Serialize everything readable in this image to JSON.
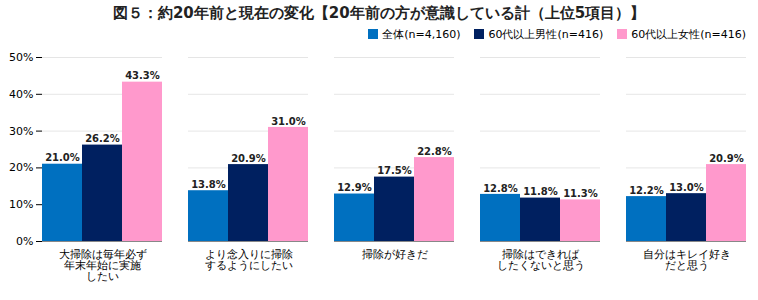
{
  "chart_data": {
    "type": "bar",
    "title": "図５：約20年前と現在の変化【20年前の方が意識している計（上位5項目）】",
    "categories": [
      "大掃除は毎年必ず\n年末年始に実施\nしたい",
      "より念入りに掃除\nするようにしたい",
      "掃除が好きだ",
      "掃除はできれば\nしたくないと思う",
      "自分はキレイ好き\nだと思う"
    ],
    "series": [
      {
        "name": "全体(n=4,160)",
        "color": "#0070c0",
        "values": [
          21.0,
          13.8,
          12.9,
          12.8,
          12.2
        ],
        "value_labels": [
          "21.0%",
          "13.8%",
          "12.9%",
          "12.8%",
          "12.2%"
        ]
      },
      {
        "name": "60代以上男性(n=416)",
        "color": "#002060",
        "values": [
          26.2,
          20.9,
          17.5,
          11.8,
          13.0
        ],
        "value_labels": [
          "26.2%",
          "20.9%",
          "17.5%",
          "11.8%",
          "13.0%"
        ]
      },
      {
        "name": "60代以上女性(n=416)",
        "color": "#ff99cc",
        "values": [
          43.3,
          31.0,
          22.8,
          11.3,
          20.9
        ],
        "value_labels": [
          "43.3%",
          "31.0%",
          "22.8%",
          "11.3%",
          "20.9%"
        ]
      }
    ],
    "ylim": [
      0,
      50
    ],
    "yticks": [
      {
        "value": 0,
        "label": "0%"
      },
      {
        "value": 10,
        "label": "10%"
      },
      {
        "value": 20,
        "label": "20%"
      },
      {
        "value": 30,
        "label": "30%"
      },
      {
        "value": 40,
        "label": "40%"
      },
      {
        "value": 50,
        "label": "50%"
      }
    ],
    "grid": true,
    "legend": "top-right",
    "data_labels": true
  }
}
